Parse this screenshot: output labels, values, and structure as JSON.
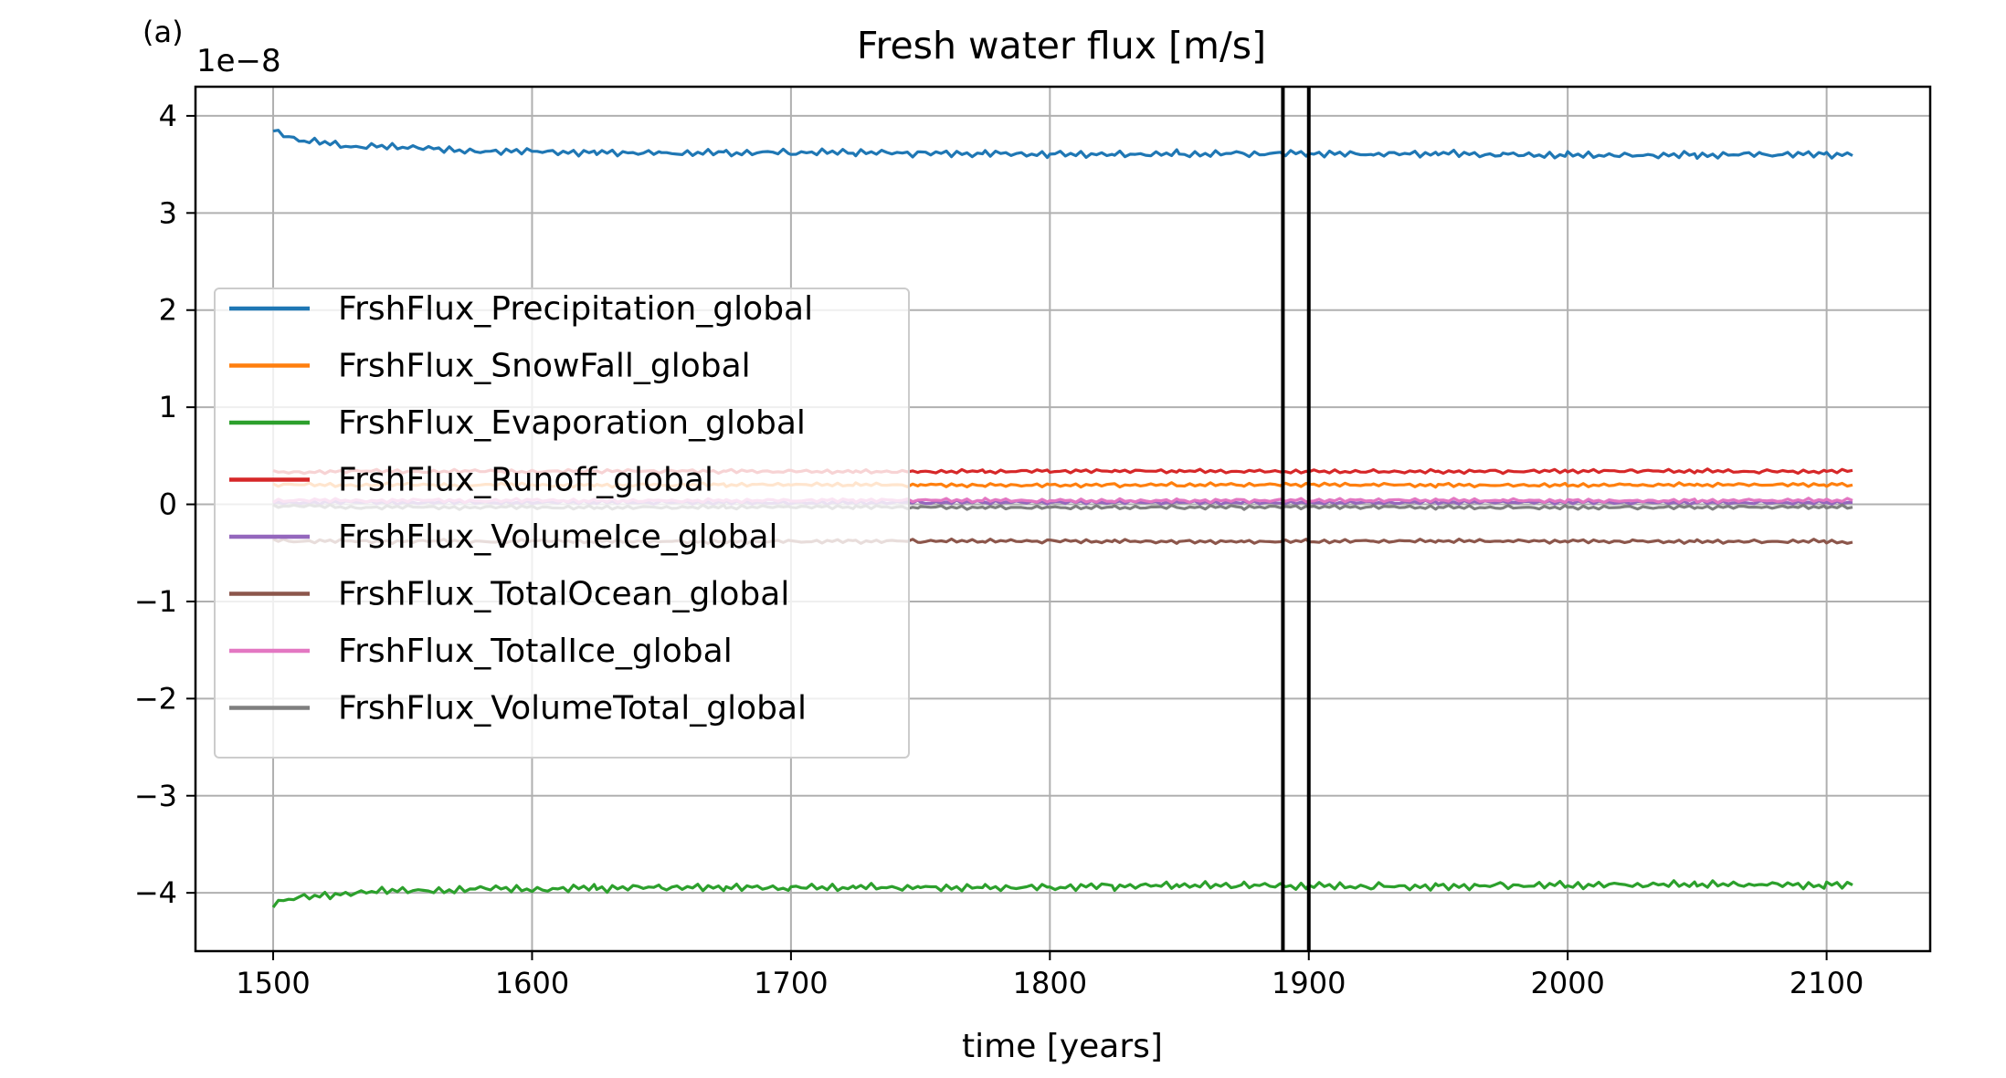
{
  "chart_data": {
    "type": "line",
    "title": "Fresh water flux [m/s]",
    "panel_label": "(a)",
    "xlabel": "time [years]",
    "ylabel": "",
    "y_offset_label": "1e−8",
    "y_scale_exponent": -8,
    "xlim": [
      1470,
      2140
    ],
    "ylim": [
      -4.6,
      4.3
    ],
    "xticks": [
      1500,
      1600,
      1700,
      1800,
      1900,
      2000,
      2100
    ],
    "xtick_labels": [
      "1500",
      "1600",
      "1700",
      "1800",
      "1900",
      "2000",
      "2100"
    ],
    "yticks": [
      -4,
      -3,
      -2,
      -1,
      0,
      1,
      2,
      3,
      4
    ],
    "ytick_labels": [
      "−4",
      "−3",
      "−2",
      "−1",
      "0",
      "1",
      "2",
      "3",
      "4"
    ],
    "grid": true,
    "legend_position": "center-left",
    "vertical_lines": [
      1890,
      1900
    ],
    "vertical_line_color": "#000000",
    "x": [
      1500,
      1510,
      1520,
      1530,
      1540,
      1550,
      1560,
      1570,
      1580,
      1590,
      1600,
      1625,
      1650,
      1675,
      1700,
      1725,
      1750,
      1775,
      1800,
      1825,
      1850,
      1875,
      1900,
      1925,
      1950,
      1975,
      2000,
      2025,
      2050,
      2075,
      2100,
      2110
    ],
    "series": [
      {
        "name": "FrshFlux_Precipitation_global",
        "color": "#1f77b4",
        "values": [
          3.86,
          3.74,
          3.72,
          3.68,
          3.7,
          3.67,
          3.66,
          3.65,
          3.64,
          3.63,
          3.63,
          3.63,
          3.62,
          3.62,
          3.62,
          3.62,
          3.61,
          3.61,
          3.61,
          3.61,
          3.61,
          3.61,
          3.61,
          3.6,
          3.61,
          3.6,
          3.6,
          3.6,
          3.6,
          3.6,
          3.6,
          3.59
        ]
      },
      {
        "name": "FrshFlux_SnowFall_global",
        "color": "#ff7f0e",
        "values": [
          0.2,
          0.2,
          0.2,
          0.2,
          0.2,
          0.2,
          0.2,
          0.2,
          0.2,
          0.2,
          0.2,
          0.2,
          0.2,
          0.2,
          0.2,
          0.2,
          0.2,
          0.2,
          0.2,
          0.2,
          0.2,
          0.2,
          0.2,
          0.2,
          0.2,
          0.2,
          0.2,
          0.2,
          0.2,
          0.2,
          0.2,
          0.2
        ]
      },
      {
        "name": "FrshFlux_Evaporation_global",
        "color": "#2ca02c",
        "values": [
          -4.12,
          -4.05,
          -4.02,
          -4.0,
          -3.99,
          -3.98,
          -3.97,
          -3.97,
          -3.96,
          -3.96,
          -3.96,
          -3.95,
          -3.95,
          -3.95,
          -3.95,
          -3.94,
          -3.94,
          -3.94,
          -3.94,
          -3.93,
          -3.93,
          -3.93,
          -3.93,
          -3.93,
          -3.93,
          -3.92,
          -3.92,
          -3.92,
          -3.92,
          -3.92,
          -3.92,
          -3.92
        ]
      },
      {
        "name": "FrshFlux_Runoff_global",
        "color": "#d62728",
        "values": [
          0.33,
          0.33,
          0.34,
          0.34,
          0.34,
          0.34,
          0.34,
          0.34,
          0.34,
          0.34,
          0.34,
          0.34,
          0.34,
          0.34,
          0.34,
          0.34,
          0.34,
          0.34,
          0.34,
          0.34,
          0.34,
          0.34,
          0.34,
          0.34,
          0.34,
          0.34,
          0.34,
          0.34,
          0.34,
          0.34,
          0.34,
          0.35
        ]
      },
      {
        "name": "FrshFlux_VolumeIce_global",
        "color": "#9467bd",
        "values": [
          0.02,
          0.02,
          0.02,
          0.02,
          0.02,
          0.02,
          0.02,
          0.02,
          0.02,
          0.02,
          0.02,
          0.02,
          0.02,
          0.02,
          0.02,
          0.02,
          0.02,
          0.02,
          0.02,
          0.02,
          0.02,
          0.02,
          0.02,
          0.02,
          0.02,
          0.02,
          0.02,
          0.02,
          0.02,
          0.02,
          0.02,
          0.02
        ]
      },
      {
        "name": "FrshFlux_TotalOcean_global",
        "color": "#8c564b",
        "values": [
          -0.36,
          -0.38,
          -0.38,
          -0.38,
          -0.38,
          -0.38,
          -0.38,
          -0.38,
          -0.38,
          -0.38,
          -0.38,
          -0.38,
          -0.38,
          -0.38,
          -0.38,
          -0.38,
          -0.38,
          -0.38,
          -0.38,
          -0.38,
          -0.38,
          -0.38,
          -0.38,
          -0.38,
          -0.38,
          -0.38,
          -0.38,
          -0.38,
          -0.38,
          -0.38,
          -0.38,
          -0.39
        ]
      },
      {
        "name": "FrshFlux_TotalIce_global",
        "color": "#e377c2",
        "values": [
          0.04,
          0.04,
          0.04,
          0.04,
          0.04,
          0.04,
          0.04,
          0.04,
          0.04,
          0.04,
          0.04,
          0.04,
          0.04,
          0.04,
          0.04,
          0.04,
          0.04,
          0.04,
          0.04,
          0.04,
          0.04,
          0.04,
          0.04,
          0.04,
          0.04,
          0.04,
          0.04,
          0.04,
          0.04,
          0.04,
          0.04,
          0.04
        ]
      },
      {
        "name": "FrshFlux_VolumeTotal_global",
        "color": "#7f7f7f",
        "values": [
          -0.02,
          -0.02,
          -0.02,
          -0.03,
          -0.03,
          -0.03,
          -0.03,
          -0.03,
          -0.03,
          -0.03,
          -0.03,
          -0.03,
          -0.03,
          -0.03,
          -0.03,
          -0.03,
          -0.03,
          -0.03,
          -0.03,
          -0.03,
          -0.03,
          -0.03,
          -0.03,
          -0.03,
          -0.03,
          -0.03,
          -0.03,
          -0.03,
          -0.03,
          -0.03,
          -0.03,
          -0.03
        ]
      }
    ]
  }
}
